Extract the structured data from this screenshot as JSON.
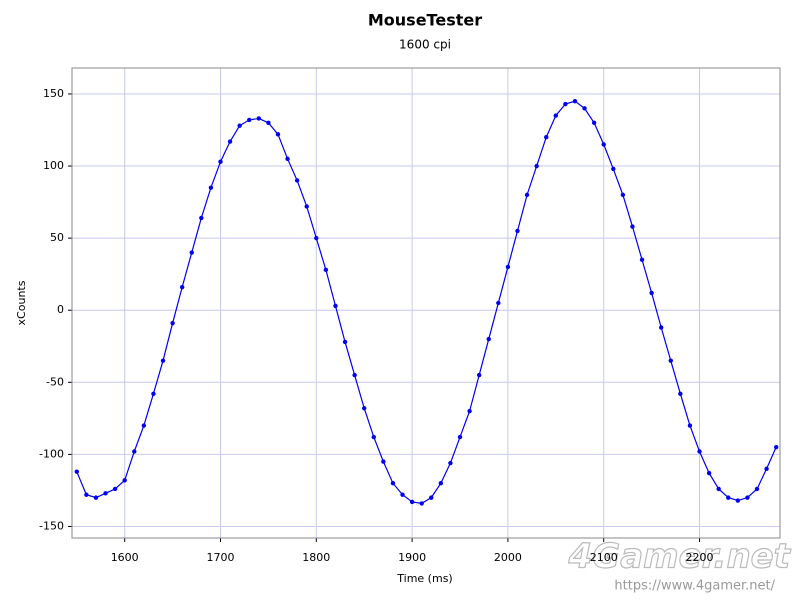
{
  "chart_data": {
    "type": "line",
    "title": "MouseTester",
    "subtitle": "1600 cpi",
    "x_label": "Time (ms)",
    "y_label": "xCounts",
    "x": [
      1550,
      1560,
      1570,
      1580,
      1590,
      1600,
      1610,
      1620,
      1630,
      1640,
      1650,
      1660,
      1670,
      1680,
      1690,
      1700,
      1710,
      1720,
      1730,
      1740,
      1750,
      1760,
      1770,
      1780,
      1790,
      1800,
      1810,
      1820,
      1830,
      1840,
      1850,
      1860,
      1870,
      1880,
      1890,
      1900,
      1910,
      1920,
      1930,
      1940,
      1950,
      1960,
      1970,
      1980,
      1990,
      2000,
      2010,
      2020,
      2030,
      2040,
      2050,
      2060,
      2070,
      2080,
      2090,
      2100,
      2110,
      2120,
      2130,
      2140,
      2150,
      2160,
      2170,
      2180,
      2190,
      2200,
      2210,
      2220,
      2230,
      2240,
      2250,
      2260,
      2270,
      2280
    ],
    "series": [
      {
        "color": "#0000ee",
        "values": [
          -112,
          -128,
          -130,
          -127,
          -124,
          -118,
          -98,
          -80,
          -58,
          -35,
          -9,
          16,
          40,
          64,
          85,
          103,
          117,
          128,
          132,
          133,
          130,
          122,
          105,
          90,
          72,
          50,
          28,
          3,
          -22,
          -45,
          -68,
          -88,
          -105,
          -120,
          -128,
          -133,
          -134,
          -130,
          -120,
          -106,
          -88,
          -70,
          -45,
          -20,
          5,
          30,
          55,
          80,
          100,
          120,
          135,
          143,
          145,
          140,
          130,
          115,
          98,
          80,
          58,
          35,
          12,
          -12,
          -35,
          -58,
          -80,
          -98,
          -113,
          -124,
          -130,
          -132,
          -130,
          -124,
          -110,
          -95
        ]
      }
    ],
    "xlim": [
      1545,
      2284
    ],
    "ylim": [
      -158,
      168
    ],
    "xticks": [
      1600,
      1700,
      1800,
      1900,
      2000,
      2100,
      2200
    ],
    "yticks": [
      -150,
      -100,
      -50,
      0,
      50,
      100,
      150
    ],
    "grid": true,
    "watermark": "4Gamer.net",
    "watermark_url": "https://www.4gamer.net/"
  }
}
